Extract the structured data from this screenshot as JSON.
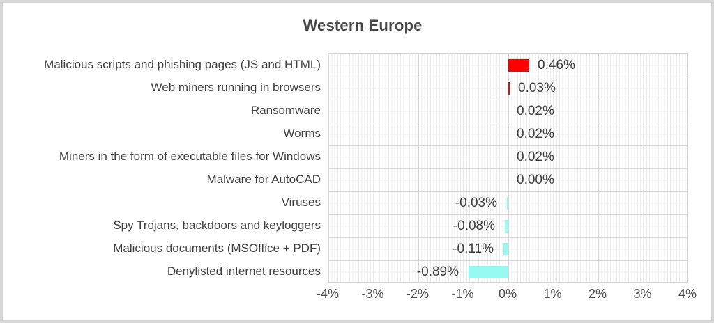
{
  "title": "Western Europe",
  "colors": {
    "positive_bar": "#ff0000",
    "negative_bar": "#97faf2",
    "text": "#3f3f3f",
    "axis_text": "#4d4d4d",
    "grid_major": "#d4d4d4",
    "grid_minor": "#ececec",
    "frame_border": "#d6d6d6"
  },
  "chart_data": {
    "type": "bar",
    "orientation": "horizontal",
    "title": "Western Europe",
    "categories": [
      "Malicious scripts and phishing pages (JS and HTML)",
      "Web miners running in browsers",
      "Ransomware",
      "Worms",
      "Miners in the form of executable files for Windows",
      "Malware for AutoCAD",
      "Viruses",
      "Spy Trojans, backdoors and keyloggers",
      "Malicious documents (MSOffice + PDF)",
      "Denylisted internet resources"
    ],
    "values": [
      0.46,
      0.03,
      0.02,
      0.02,
      0.02,
      0.0,
      -0.03,
      -0.08,
      -0.11,
      -0.89
    ],
    "value_labels": [
      "0.46%",
      "0.03%",
      "0.02%",
      "0.02%",
      "0.02%",
      "0.00%",
      "-0.03%",
      "-0.08%",
      "-0.11%",
      "-0.89%"
    ],
    "x_ticks": [
      "-4%",
      "-3%",
      "-2%",
      "-1%",
      "0%",
      "1%",
      "2%",
      "3%",
      "4%"
    ],
    "xlim": [
      -4,
      4
    ],
    "xlabel": "",
    "ylabel": "",
    "unit": "%",
    "grid": true,
    "legend": false
  }
}
